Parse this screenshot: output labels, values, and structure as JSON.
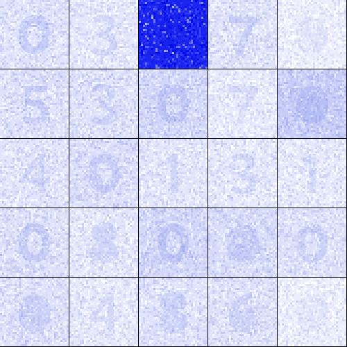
{
  "grid": {
    "rows": 5,
    "columns": 5,
    "tiles": [
      {
        "base": "#dfe3fb",
        "blob": "#9aa6f0",
        "strength": 0.35,
        "glyph": "ring"
      },
      {
        "base": "#e4e7fb",
        "blob": "#a7b0f0",
        "strength": 0.3,
        "glyph": "three"
      },
      {
        "base": "#1a24f0",
        "blob": "#1018e0",
        "strength": 0.15,
        "glyph": "solid"
      },
      {
        "base": "#dfe3fa",
        "blob": "#9ca7ef",
        "strength": 0.35,
        "glyph": "seven"
      },
      {
        "base": "#eceefc",
        "blob": "#c5cbf5",
        "strength": 0.25,
        "glyph": "blob"
      },
      {
        "base": "#dde1fa",
        "blob": "#9aa5ef",
        "strength": 0.35,
        "glyph": "five"
      },
      {
        "base": "#dde1fa",
        "blob": "#a2acf0",
        "strength": 0.3,
        "glyph": "three"
      },
      {
        "base": "#d3d8f9",
        "blob": "#98a3ee",
        "strength": 0.35,
        "glyph": "ring"
      },
      {
        "base": "#e7eafc",
        "blob": "#b3bbf3",
        "strength": 0.3,
        "glyph": "seven"
      },
      {
        "base": "#c8cef7",
        "blob": "#97a2ee",
        "strength": 0.35,
        "glyph": "blob"
      },
      {
        "base": "#e2e5fb",
        "blob": "#a4aef0",
        "strength": 0.3,
        "glyph": "four"
      },
      {
        "base": "#dcdffa",
        "blob": "#9ea9ef",
        "strength": 0.35,
        "glyph": "ring"
      },
      {
        "base": "#e3e6fb",
        "blob": "#aab3f1",
        "strength": 0.3,
        "glyph": "one"
      },
      {
        "base": "#e5e8fb",
        "blob": "#a6b0f1",
        "strength": 0.3,
        "glyph": "three"
      },
      {
        "base": "#e6e9fb",
        "blob": "#b1b9f3",
        "strength": 0.3,
        "glyph": "one"
      },
      {
        "base": "#dde1fa",
        "blob": "#9ca7ef",
        "strength": 0.35,
        "glyph": "ring"
      },
      {
        "base": "#e3e6fb",
        "blob": "#aab3f1",
        "strength": 0.3,
        "glyph": "eight"
      },
      {
        "base": "#d4d9f9",
        "blob": "#95a0ee",
        "strength": 0.35,
        "glyph": "ring"
      },
      {
        "base": "#d7dcf9",
        "blob": "#a1abf0",
        "strength": 0.3,
        "glyph": "blob"
      },
      {
        "base": "#dde1fa",
        "blob": "#a6b0f0",
        "strength": 0.3,
        "glyph": "ring"
      },
      {
        "base": "#dde1fa",
        "blob": "#a0aaf0",
        "strength": 0.3,
        "glyph": "blob"
      },
      {
        "base": "#e6e9fb",
        "blob": "#adb5f2",
        "strength": 0.3,
        "glyph": "four"
      },
      {
        "base": "#dfe3fb",
        "blob": "#a6b0f1",
        "strength": 0.3,
        "glyph": "eight"
      },
      {
        "base": "#dde1fa",
        "blob": "#a6b0f0",
        "strength": 0.3,
        "glyph": "six"
      },
      {
        "base": "#eceefc",
        "blob": "#c0c7f5",
        "strength": 0.25,
        "glyph": "blob"
      }
    ]
  }
}
